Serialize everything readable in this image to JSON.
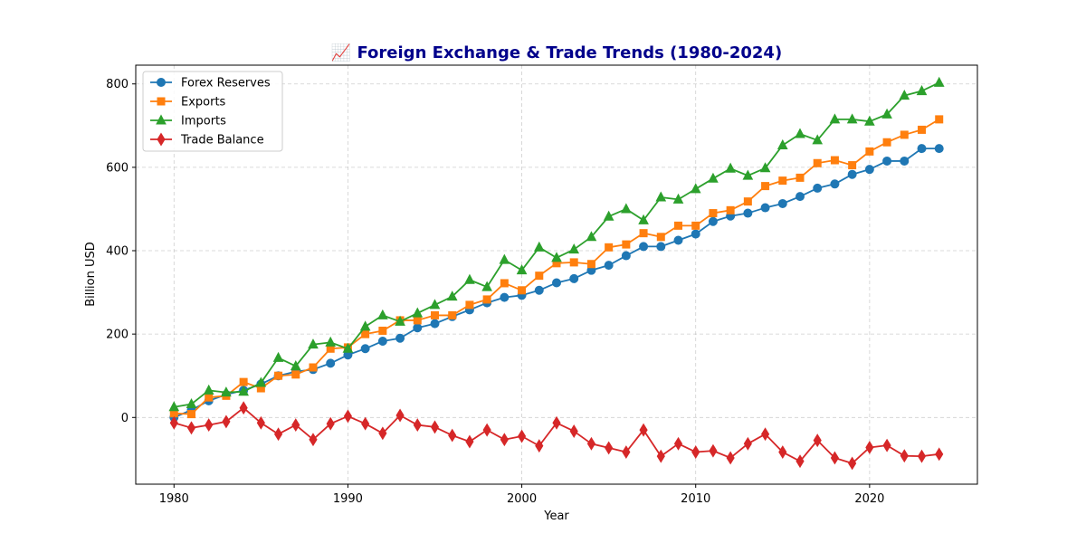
{
  "chart_data": {
    "type": "line",
    "title": "📈 Foreign Exchange & Trade Trends (1980-2024)",
    "xlabel": "Year",
    "ylabel": "Billion USD",
    "xlim": [
      1977.8,
      2026.2
    ],
    "ylim": [
      -160,
      845
    ],
    "xticks": [
      1980,
      1990,
      2000,
      2010,
      2020
    ],
    "yticks": [
      0,
      200,
      400,
      600,
      800
    ],
    "grid": true,
    "legend_position": "top-left",
    "x": [
      1980,
      1981,
      1982,
      1983,
      1984,
      1985,
      1986,
      1987,
      1988,
      1989,
      1990,
      1991,
      1992,
      1993,
      1994,
      1995,
      1996,
      1997,
      1998,
      1999,
      2000,
      2001,
      2002,
      2003,
      2004,
      2005,
      2006,
      2007,
      2008,
      2009,
      2010,
      2011,
      2012,
      2013,
      2014,
      2015,
      2016,
      2017,
      2018,
      2019,
      2020,
      2021,
      2022,
      2023,
      2024
    ],
    "series": [
      {
        "name": "Forex Reserves",
        "color": "#1f77b4",
        "marker": "circle",
        "values": [
          0,
          18,
          40,
          55,
          65,
          80,
          100,
          110,
          115,
          130,
          150,
          165,
          183,
          190,
          215,
          225,
          242,
          258,
          275,
          288,
          293,
          305,
          323,
          333,
          353,
          365,
          388,
          410,
          410,
          425,
          440,
          470,
          483,
          490,
          503,
          513,
          530,
          550,
          560,
          583,
          595,
          615,
          615,
          645,
          645
        ]
      },
      {
        "name": "Exports",
        "color": "#ff7f0e",
        "marker": "square",
        "values": [
          10,
          8,
          48,
          52,
          85,
          70,
          100,
          103,
          120,
          165,
          168,
          200,
          208,
          233,
          233,
          245,
          245,
          270,
          283,
          322,
          305,
          340,
          370,
          372,
          368,
          408,
          415,
          442,
          433,
          460,
          460,
          490,
          497,
          518,
          555,
          568,
          575,
          610,
          617,
          605,
          638,
          660,
          678,
          690,
          715
        ]
      },
      {
        "name": "Imports",
        "color": "#2ca02c",
        "marker": "triangle",
        "values": [
          25,
          32,
          65,
          60,
          62,
          83,
          143,
          123,
          175,
          180,
          165,
          218,
          245,
          230,
          250,
          270,
          290,
          330,
          313,
          378,
          353,
          408,
          383,
          403,
          433,
          482,
          500,
          473,
          528,
          523,
          548,
          573,
          597,
          580,
          598,
          653,
          680,
          665,
          715,
          715,
          710,
          727,
          772,
          783,
          803
        ]
      },
      {
        "name": "Trade Balance",
        "color": "#d62728",
        "marker": "diamond",
        "values": [
          -13,
          -25,
          -18,
          -10,
          23,
          -13,
          -40,
          -18,
          -53,
          -15,
          3,
          -15,
          -38,
          5,
          -18,
          -23,
          -43,
          -58,
          -30,
          -53,
          -45,
          -68,
          -13,
          -33,
          -63,
          -73,
          -83,
          -30,
          -93,
          -63,
          -83,
          -80,
          -97,
          -63,
          -40,
          -83,
          -105,
          -55,
          -97,
          -110,
          -72,
          -67,
          -92,
          -93,
          -88
        ]
      }
    ]
  }
}
